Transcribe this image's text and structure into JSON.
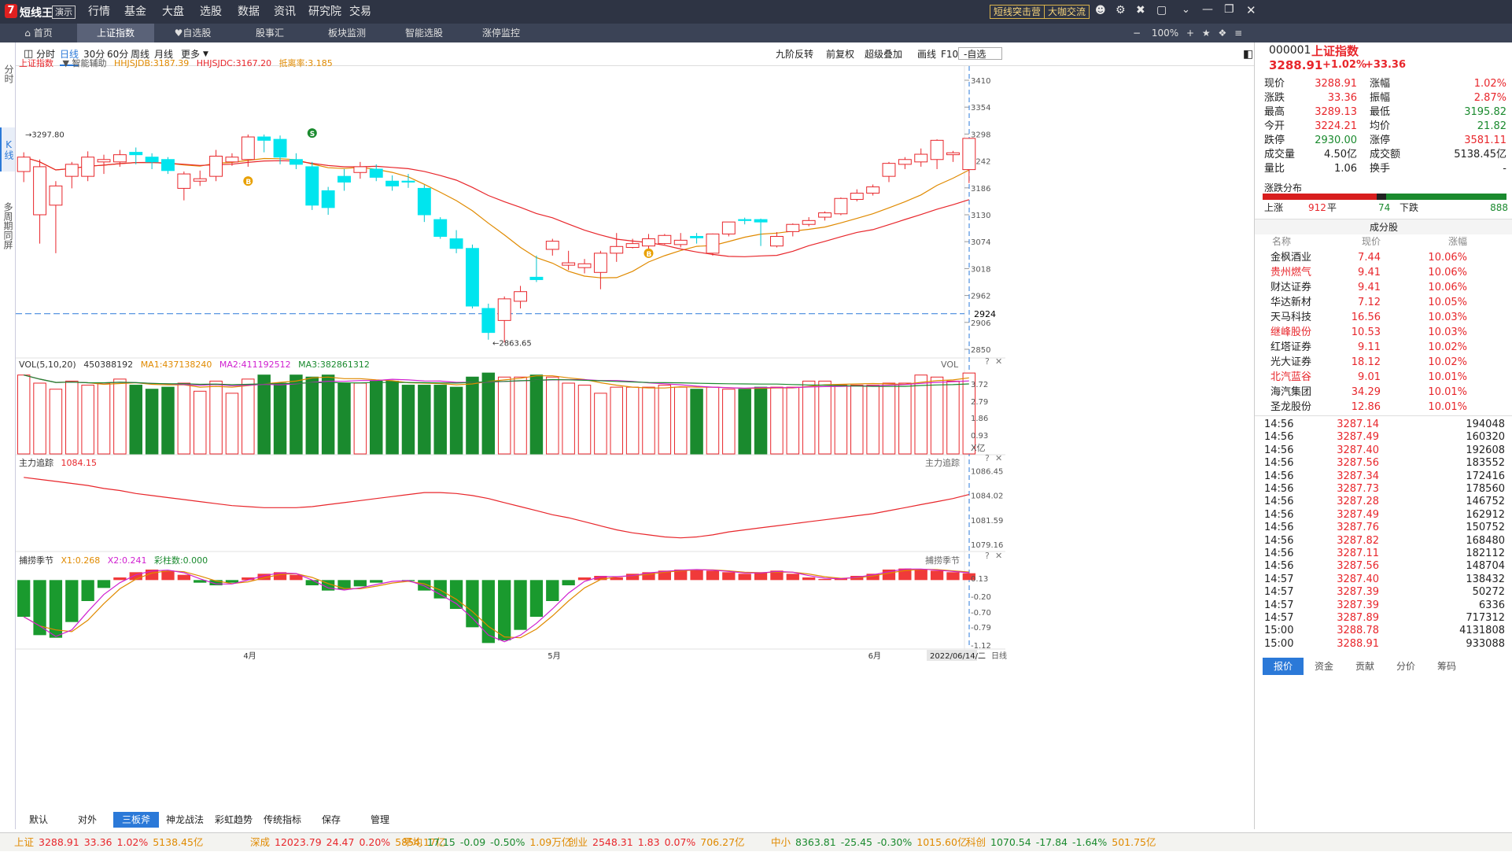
{
  "app": {
    "logo": "短线王",
    "badge": "演示"
  },
  "menu": [
    "行情",
    "基金",
    "大盘",
    "选股",
    "数据",
    "资讯",
    "研究院",
    "交易"
  ],
  "top_buttons": [
    "短线突击营",
    "大咖交流"
  ],
  "zoom": "100%",
  "tabs": [
    "首页",
    "上证指数",
    "自选股",
    "股事汇",
    "板块监测",
    "智能选股",
    "涨停监控"
  ],
  "side_nav": [
    "分时",
    "K线",
    "多周期同屏"
  ],
  "periods": [
    "分时",
    "日线",
    "30分",
    "60分",
    "周线",
    "月线",
    "更多"
  ],
  "tools": [
    "九阶反转",
    "前复权",
    "超级叠加",
    "画线",
    "F10",
    "-自选"
  ],
  "main_ind": {
    "name": "上证指数",
    "assist": "智能辅助",
    "jdb": "HHJSJDB:3187.39",
    "jdc": "HHJSJDC:3167.20",
    "rate": "抵离率:3.185"
  },
  "price_axis": [
    "3410",
    "3354",
    "3298",
    "3242",
    "3186",
    "3130",
    "3074",
    "3018",
    "2962",
    "2906",
    "2850"
  ],
  "price_marker": "2924",
  "high_label": "3297.80",
  "low_label": "2863.65",
  "vol": {
    "title": "VOL(5,10,20)",
    "v": "450388192",
    "ma1": "MA1:437138240",
    "ma2": "MA2:411192512",
    "ma3": "MA3:382861312",
    "right": "VOL",
    "axis": [
      "3.72",
      "2.79",
      "1.86",
      "0.93",
      "X亿"
    ]
  },
  "zl": {
    "title": "主力追踪",
    "v": "1084.15",
    "right": "主力追踪",
    "axis": [
      "1086.45",
      "1084.02",
      "1081.59",
      "1079.16"
    ]
  },
  "bz": {
    "title": "捕捞季节",
    "x1": "X1:0.268",
    "x2": "X2:0.241",
    "cz": "彩柱数:0.000",
    "right": "捕捞季节",
    "axis": [
      "0.13",
      "-0.20",
      "-0.70",
      "-0.79",
      "-1.12"
    ]
  },
  "months": [
    "4月",
    "5月",
    "6月"
  ],
  "date_label": "2022/06/14/二",
  "day_label": "日线",
  "bottom_tabs": [
    "默认",
    "对外",
    "三板斧",
    "神龙战法",
    "彩虹趋势",
    "传统指标",
    "保存",
    "管理"
  ],
  "quote": {
    "code": "000001",
    "name": "上证指数",
    "price": "3288.91",
    "pct": "+1.02%",
    "chg": "+33.36",
    "fields": [
      [
        "现价",
        "3288.91",
        "涨幅",
        "1.02%"
      ],
      [
        "涨跌",
        "33.36",
        "振幅",
        "2.87%"
      ],
      [
        "最高",
        "3289.13",
        "最低",
        "3195.82"
      ],
      [
        "今开",
        "3224.21",
        "均价",
        "21.82"
      ],
      [
        "跌停",
        "2930.00",
        "涨停",
        "3581.11"
      ],
      [
        "成交量",
        "4.50亿",
        "成交额",
        "5138.45亿"
      ],
      [
        "量比",
        "1.06",
        "换手",
        "-"
      ]
    ],
    "dist_title": "涨跌分布",
    "up_label": "上涨",
    "up": "912",
    "flat_label": "平",
    "flat": "74",
    "down_label": "下跌",
    "down": "888"
  },
  "components": {
    "title": "成分股",
    "cols": [
      "名称",
      "现价",
      "涨幅"
    ],
    "rows": [
      [
        "金枫酒业",
        "7.44",
        "10.06%"
      ],
      [
        "贵州燃气",
        "9.41",
        "10.06%"
      ],
      [
        "财达证券",
        "9.41",
        "10.06%"
      ],
      [
        "华达新材",
        "7.12",
        "10.05%"
      ],
      [
        "天马科技",
        "16.56",
        "10.03%"
      ],
      [
        "继峰股份",
        "10.53",
        "10.03%"
      ],
      [
        "红塔证券",
        "9.11",
        "10.02%"
      ],
      [
        "光大证券",
        "18.12",
        "10.02%"
      ],
      [
        "北汽蓝谷",
        "9.01",
        "10.01%"
      ],
      [
        "海汽集团",
        "34.29",
        "10.01%"
      ],
      [
        "圣龙股份",
        "12.86",
        "10.01%"
      ]
    ]
  },
  "ticks": [
    [
      "14:56",
      "3287.14",
      "194048"
    ],
    [
      "14:56",
      "3287.49",
      "160320"
    ],
    [
      "14:56",
      "3287.40",
      "192608"
    ],
    [
      "14:56",
      "3287.56",
      "183552"
    ],
    [
      "14:56",
      "3287.34",
      "172416"
    ],
    [
      "14:56",
      "3287.73",
      "178560"
    ],
    [
      "14:56",
      "3287.28",
      "146752"
    ],
    [
      "14:56",
      "3287.49",
      "162912"
    ],
    [
      "14:56",
      "3287.76",
      "150752"
    ],
    [
      "14:56",
      "3287.82",
      "168480"
    ],
    [
      "14:56",
      "3287.11",
      "182112"
    ],
    [
      "14:56",
      "3287.56",
      "148704"
    ],
    [
      "14:57",
      "3287.40",
      "138432"
    ],
    [
      "14:57",
      "3287.39",
      "50272"
    ],
    [
      "14:57",
      "3287.39",
      "6336"
    ],
    [
      "14:57",
      "3287.89",
      "717312"
    ],
    [
      "15:00",
      "3288.78",
      "4131808"
    ],
    [
      "15:00",
      "3288.91",
      "933088"
    ]
  ],
  "right_tabs": [
    "报价",
    "资金",
    "贡献",
    "分价",
    "筹码"
  ],
  "status": [
    [
      "上证",
      "3288.91",
      "33.36",
      "1.02%",
      "5138.45亿"
    ],
    [
      "深成",
      "12023.79",
      "24.47",
      "0.20%",
      "5854.17亿"
    ],
    [
      "平均",
      "17.15",
      "-0.09",
      "-0.50%",
      "1.09万亿"
    ],
    [
      "创业",
      "2548.31",
      "1.83",
      "0.07%",
      "706.27亿"
    ],
    [
      "中小",
      "8363.81",
      "-25.45",
      "-0.30%",
      "1015.60亿"
    ],
    [
      "科创",
      "1070.54",
      "-17.84",
      "-1.64%",
      "501.75亿"
    ]
  ],
  "chart_data": {
    "type": "candlestick",
    "title": "上证指数",
    "period": "日线",
    "candles": [
      [
        3220,
        3250,
        3198,
        3260
      ],
      [
        3130,
        3230,
        3070,
        3245
      ],
      [
        3150,
        3190,
        3050,
        3200
      ],
      [
        3210,
        3235,
        3185,
        3240
      ],
      [
        3210,
        3250,
        3200,
        3262
      ],
      [
        3240,
        3245,
        3215,
        3255
      ],
      [
        3240,
        3255,
        3230,
        3265
      ],
      [
        3260,
        3255,
        3235,
        3270
      ],
      [
        3250,
        3240,
        3225,
        3258
      ],
      [
        3245,
        3222,
        3215,
        3250
      ],
      [
        3185,
        3215,
        3160,
        3220
      ],
      [
        3200,
        3205,
        3190,
        3222
      ],
      [
        3210,
        3252,
        3200,
        3265
      ],
      [
        3240,
        3250,
        3232,
        3258
      ],
      [
        3245,
        3292,
        3230,
        3297
      ],
      [
        3292,
        3285,
        3260,
        3297
      ],
      [
        3287,
        3250,
        3235,
        3295
      ],
      [
        3245,
        3235,
        3225,
        3258
      ],
      [
        3230,
        3150,
        3140,
        3240
      ],
      [
        3180,
        3145,
        3130,
        3188
      ],
      [
        3210,
        3198,
        3180,
        3225
      ],
      [
        3218,
        3230,
        3205,
        3240
      ],
      [
        3225,
        3208,
        3200,
        3235
      ],
      [
        3200,
        3190,
        3180,
        3212
      ],
      [
        3200,
        3198,
        3186,
        3215
      ],
      [
        3185,
        3130,
        3115,
        3192
      ],
      [
        3120,
        3085,
        3080,
        3125
      ],
      [
        3080,
        3060,
        3050,
        3098
      ],
      [
        3060,
        2940,
        2935,
        3068
      ],
      [
        2935,
        2885,
        2870,
        2945
      ],
      [
        2910,
        2955,
        2864,
        2960
      ],
      [
        2950,
        2970,
        2935,
        2982
      ],
      [
        3000,
        2995,
        2990,
        3045
      ],
      [
        3058,
        3075,
        3045,
        3080
      ],
      [
        3025,
        3030,
        3015,
        3055
      ],
      [
        3020,
        3028,
        3008,
        3038
      ],
      [
        3010,
        3050,
        2975,
        3055
      ],
      [
        3050,
        3064,
        3032,
        3092
      ],
      [
        3062,
        3070,
        3060,
        3080
      ],
      [
        3065,
        3080,
        3055,
        3090
      ],
      [
        3070,
        3087,
        3068,
        3090
      ],
      [
        3068,
        3077,
        3062,
        3092
      ],
      [
        3085,
        3082,
        3070,
        3092
      ],
      [
        3050,
        3090,
        3045,
        3091
      ],
      [
        3090,
        3115,
        3085,
        3115
      ],
      [
        3120,
        3118,
        3110,
        3124
      ],
      [
        3120,
        3115,
        3065,
        3122
      ],
      [
        3065,
        3085,
        3062,
        3094
      ],
      [
        3095,
        3110,
        3085,
        3112
      ],
      [
        3110,
        3118,
        3106,
        3125
      ],
      [
        3125,
        3134,
        3118,
        3137
      ],
      [
        3132,
        3164,
        3129,
        3166
      ],
      [
        3162,
        3175,
        3158,
        3183
      ],
      [
        3175,
        3188,
        3170,
        3193
      ],
      [
        3210,
        3237,
        3198,
        3240
      ],
      [
        3235,
        3245,
        3225,
        3250
      ],
      [
        3240,
        3256,
        3230,
        3268
      ],
      [
        3245,
        3285,
        3225,
        3287
      ],
      [
        3255,
        3259,
        3240,
        3263
      ],
      [
        3224,
        3289,
        3196,
        3289
      ]
    ]
  }
}
